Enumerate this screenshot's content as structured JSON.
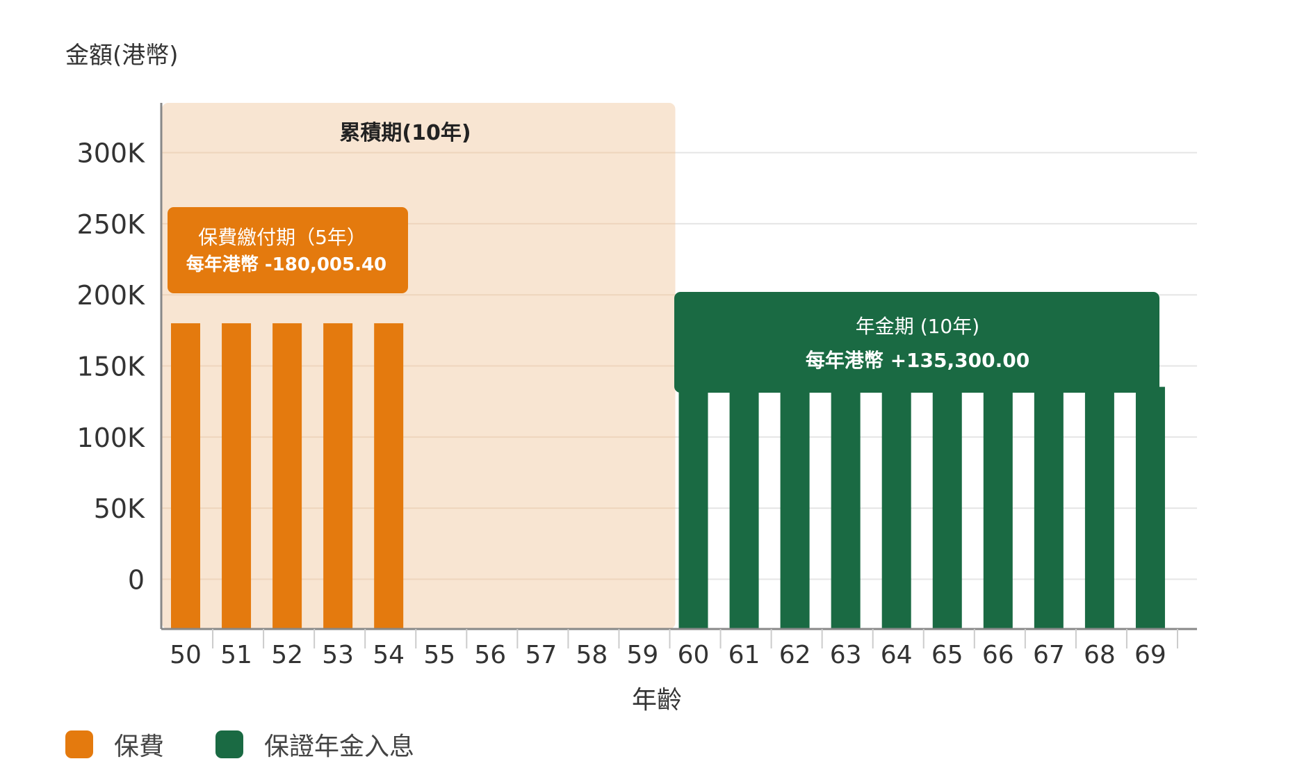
{
  "colors": {
    "premium": "#E47A0E",
    "income": "#1A6A43",
    "accumulation_bg": "#F8E5D2",
    "grid": "#E5E5E5",
    "axis": "#888888",
    "text": "#333333"
  },
  "y_axis_title": "金額(港幣)",
  "x_axis_title": "年齡",
  "legend": {
    "items": [
      {
        "label": "保費",
        "color": "#E47A0E"
      },
      {
        "label": "保證年金入息",
        "color": "#1A6A43"
      }
    ]
  },
  "annotations": {
    "accumulation": {
      "title": "累積期(10年)",
      "from_age": 50,
      "to_age": 59
    },
    "payment": {
      "line1": "保費繳付期（5年）",
      "line2": "每年港幣 -180,005.40"
    },
    "annuity": {
      "line1": "年金期 (10年)",
      "line2": "每年港幣 +135,300.00"
    }
  },
  "chart_data": {
    "type": "bar",
    "xlabel": "年齡",
    "ylabel": "金額(港幣)",
    "categories": [
      "50",
      "51",
      "52",
      "53",
      "54",
      "55",
      "56",
      "57",
      "58",
      "59",
      "60",
      "61",
      "62",
      "63",
      "64",
      "65",
      "66",
      "67",
      "68",
      "69"
    ],
    "y_ticks": [
      "0",
      "50K",
      "100K",
      "150K",
      "200K",
      "250K",
      "300K"
    ],
    "y_tick_values": [
      0,
      50000,
      100000,
      150000,
      200000,
      250000,
      300000
    ],
    "ylim": [
      -35000,
      335000
    ],
    "grid": true,
    "legend_position": "bottom-left",
    "series": [
      {
        "name": "保費",
        "color": "#E47A0E",
        "values": [
          180005.4,
          180005.4,
          180005.4,
          180005.4,
          180005.4,
          null,
          null,
          null,
          null,
          null,
          null,
          null,
          null,
          null,
          null,
          null,
          null,
          null,
          null,
          null
        ]
      },
      {
        "name": "保證年金入息",
        "color": "#1A6A43",
        "values": [
          null,
          null,
          null,
          null,
          null,
          null,
          null,
          null,
          null,
          null,
          135300,
          135300,
          135300,
          135300,
          135300,
          135300,
          135300,
          135300,
          135300,
          135300
        ]
      }
    ]
  }
}
